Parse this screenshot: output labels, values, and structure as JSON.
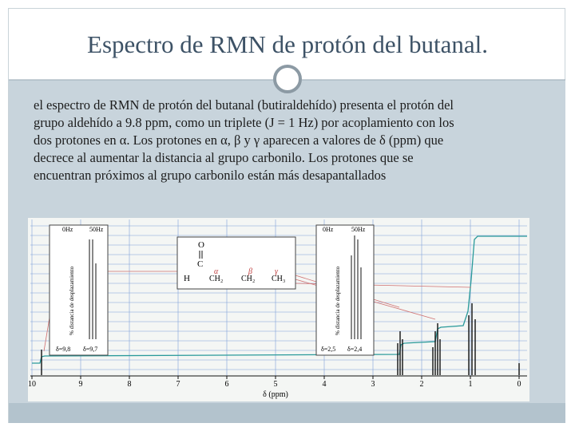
{
  "title": "Espectro de RMN de protón del butanal.",
  "body": {
    "lines": [
      "el espectro de RMN de protón del butanal (butiraldehído) presenta el protón del",
      "grupo aldehído a 9.8 ppm, como un triplete (J = 1 Hz) por acoplamiento con los",
      "dos protones en α. Los protones en α, β y γ aparecen a valores de δ (ppm) que",
      "decrece al aumentar la distancia al grupo carbonilo. Los protones que se",
      "encuentran próximos al grupo carbonilo están más desapantallados"
    ]
  },
  "spectrum": {
    "axis_ticks": [
      10,
      9,
      8,
      7,
      6,
      5,
      4,
      3,
      2,
      1,
      0
    ],
    "axis_label": "δ (ppm)",
    "inset_left": {
      "scale": [
        "0Hz",
        "50Hz"
      ],
      "side_label": "% distancia de desplazamiento",
      "shifts": [
        "δ=9,8",
        "δ=9,7"
      ]
    },
    "inset_right": {
      "scale": [
        "0Hz",
        "50Hz"
      ],
      "side_label": "% distancia de desplazamiento",
      "shifts": [
        "δ=2,5",
        "δ=2,4"
      ]
    },
    "molecule": {
      "oxygen": "O",
      "carbon": "C",
      "hydrogen": "H",
      "groups": [
        "CH₂",
        "CH₂",
        "CH₃"
      ],
      "greek": [
        "α",
        "β",
        "γ"
      ]
    }
  }
}
